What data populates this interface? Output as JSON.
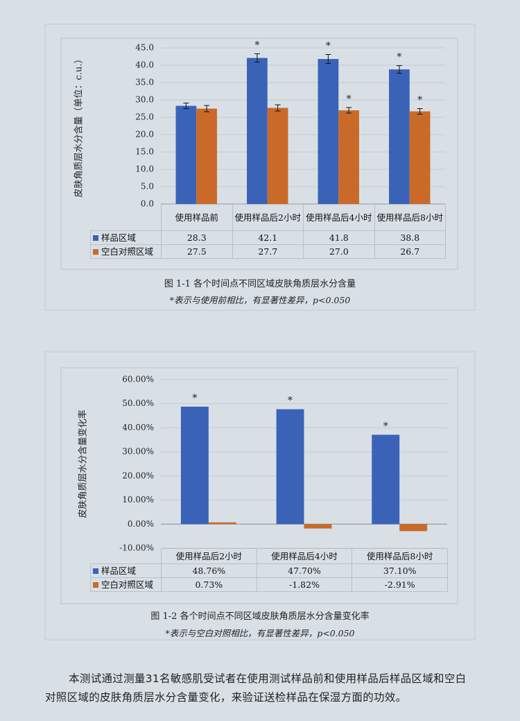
{
  "chart_data": [
    {
      "type": "bar",
      "title": "图 1-1 各个时间点不同区域皮肤角质层水分含量",
      "note": "*表示与使用前相比，有显著性差异，p<0.050",
      "y_label": "皮肤角质层水分含量（单位：c.u.）",
      "categories": [
        "使用样品前",
        "使用样品后2小时",
        "使用样品后4小时",
        "使用样品后8小时"
      ],
      "series": [
        {
          "name": "样品区域",
          "color": "#3a63b8",
          "values": [
            28.3,
            42.1,
            41.8,
            38.8
          ],
          "value_labels": [
            "28.3",
            "42.1",
            "41.8",
            "38.8"
          ],
          "errors": [
            0.8,
            1.2,
            1.3,
            1.1
          ],
          "markers": [
            null,
            "*",
            "*",
            "*"
          ]
        },
        {
          "name": "空白对照区域",
          "color": "#c96a28",
          "values": [
            27.5,
            27.7,
            27,
            26.7
          ],
          "value_labels": [
            "27.5",
            "27.7",
            "27.0",
            "26.7"
          ],
          "errors": [
            0.9,
            0.9,
            0.8,
            0.8
          ],
          "markers": [
            null,
            null,
            "*",
            "*"
          ]
        }
      ],
      "ylim": [
        0,
        45
      ],
      "yticks": [
        {
          "value": 0,
          "label": "0.0"
        },
        {
          "value": 5,
          "label": "5.0"
        },
        {
          "value": 10,
          "label": "10.0"
        },
        {
          "value": 15,
          "label": "15.0"
        },
        {
          "value": 20,
          "label": "20.0"
        },
        {
          "value": 25,
          "label": "25.0"
        },
        {
          "value": 30,
          "label": "30.0"
        },
        {
          "value": 35,
          "label": "35.0"
        },
        {
          "value": 40,
          "label": "40.0"
        },
        {
          "value": 45,
          "label": "45.0"
        }
      ],
      "grid": true
    },
    {
      "type": "bar",
      "title": "图 1-2 各个时间点不同区域皮肤角质层水分含量变化率",
      "note": "*表示与空白对照相比，有显著性差异，p<0.050",
      "y_label": "皮肤角质层水分含量变化率",
      "categories": [
        "使用样品后2小时",
        "使用样品后4小时",
        "使用样品后8小时"
      ],
      "series": [
        {
          "name": "样品区域",
          "color": "#3a63b8",
          "values": [
            48.76,
            47.7,
            37.1
          ],
          "value_labels": [
            "48.76%",
            "47.70%",
            "37.10%"
          ],
          "markers": [
            "*",
            "*",
            "*"
          ]
        },
        {
          "name": "空白对照区域",
          "color": "#c96a28",
          "values": [
            0.73,
            -1.82,
            -2.91
          ],
          "value_labels": [
            "0.73%",
            "-1.82%",
            "-2.91%"
          ]
        }
      ],
      "ylim": [
        -10,
        60
      ],
      "yticks": [
        {
          "value": -10,
          "label": "-10.00%"
        },
        {
          "value": 0,
          "label": "0.00%"
        },
        {
          "value": 10,
          "label": "10.00%"
        },
        {
          "value": 20,
          "label": "20.00%"
        },
        {
          "value": 30,
          "label": "30.00%"
        },
        {
          "value": 40,
          "label": "40.00%"
        },
        {
          "value": 50,
          "label": "50.00%"
        },
        {
          "value": 60,
          "label": "60.00%"
        }
      ],
      "grid": true
    }
  ],
  "paragraph": "本测试通过测量31名敏感肌受试者在使用测试样品前和使用样品后样品区域和空白对照区域的皮肤角质层水分含量变化，来验证送检样品在保湿方面的功效。"
}
